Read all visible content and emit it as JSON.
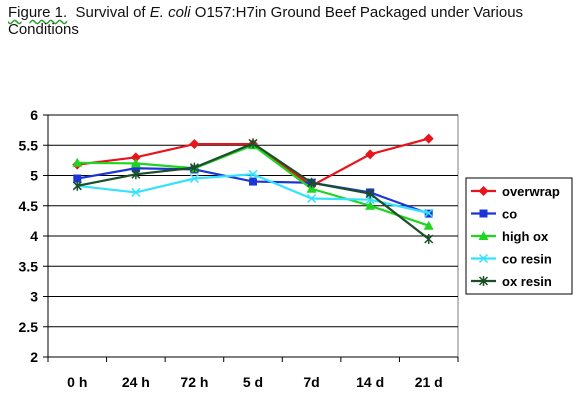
{
  "title": {
    "figure_label": "Figure 1.",
    "text_before": "Survival of",
    "italic_part": "E. coli",
    "text_after": "O157:H7in Ground Beef Packaged under Various Conditions"
  },
  "chart_data": {
    "type": "line",
    "categories": [
      "0 h",
      "24 h",
      "72 h",
      "5 d",
      "7d",
      "14 d",
      "21 d"
    ],
    "ylim": [
      2,
      6
    ],
    "yticks": [
      "2",
      "2.5",
      "3",
      "3.5",
      "4",
      "4.5",
      "5",
      "5.5",
      "6"
    ],
    "grid": "horizontal",
    "legend_position": "right",
    "series": [
      {
        "name": "overwrap",
        "color": "#e8141a",
        "marker": "diamond",
        "values": [
          5.18,
          5.3,
          5.52,
          5.52,
          4.83,
          5.35,
          5.61
        ]
      },
      {
        "name": "co",
        "color": "#1c34d8",
        "marker": "square",
        "values": [
          4.95,
          5.12,
          5.1,
          4.9,
          4.88,
          4.72,
          4.37
        ]
      },
      {
        "name": "high ox",
        "color": "#1ed61e",
        "marker": "triangle",
        "values": [
          5.21,
          5.2,
          5.12,
          5.5,
          4.78,
          4.5,
          4.17
        ]
      },
      {
        "name": "co resin",
        "color": "#33e2ff",
        "marker": "x",
        "values": [
          4.83,
          4.72,
          4.95,
          5.02,
          4.62,
          4.6,
          4.38
        ]
      },
      {
        "name": "ox resin",
        "color": "#1a4f2a",
        "marker": "star",
        "values": [
          4.83,
          5.02,
          5.13,
          5.53,
          4.88,
          4.7,
          3.95
        ]
      }
    ]
  }
}
